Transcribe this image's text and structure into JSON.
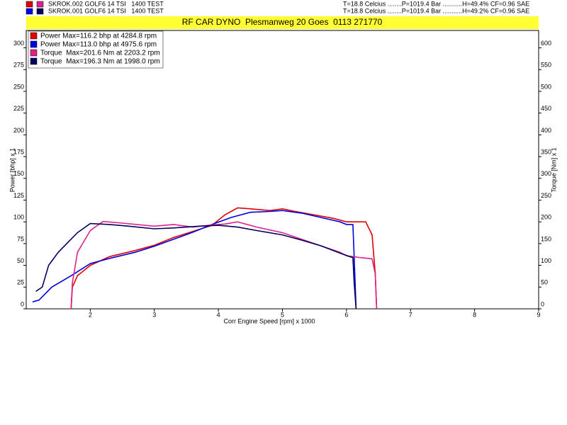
{
  "runs": [
    {
      "name": "SKROK.002 GOLF6 14 TSI   1400 TEST",
      "conditions": "T=18.8 Celcius ........P=1019.4 Bar ...........H=49.4% CF=0.96 SAE",
      "colors": [
        "#e00000",
        "#e0208a"
      ]
    },
    {
      "name": "SKROK.001 GOLF6 14 TSI   1400 TEST",
      "conditions": "T=18.8 Celcius ........P=1019.4 Bar ...........H=49.2% CF=0.96 SAE",
      "colors": [
        "#0000e0",
        "#000060"
      ]
    }
  ],
  "chart_data": {
    "type": "line",
    "title": "RF CAR DYNO  Plesmanweg 20 Goes  0113 271770",
    "title_background": "#ffff33",
    "x_label": "Corr Engine Speed [rpm] x 1000",
    "y_label": "Power [bhp] x 1",
    "y2_label": "Torque [Nm] x 1",
    "xlim": [
      1,
      9
    ],
    "xticks": [
      2,
      3,
      4,
      5,
      6,
      7,
      8,
      9
    ],
    "ylim": [
      0,
      320
    ],
    "yticks": [
      0,
      25,
      50,
      75,
      100,
      125,
      150,
      175,
      200,
      225,
      250,
      275,
      300
    ],
    "y2lim": [
      0,
      640
    ],
    "y2ticks": [
      0,
      50,
      100,
      150,
      200,
      250,
      300,
      350,
      400,
      450,
      500,
      550,
      600
    ],
    "legend": "top-left",
    "grid": false,
    "series": [
      {
        "name": "Power Max=116.2 bhp at 4284.8 rpm",
        "color": "#e00000",
        "x": [
          1.7,
          1.72,
          1.8,
          2.0,
          2.3,
          2.7,
          3.0,
          3.3,
          3.6,
          3.9,
          4.1,
          4.3,
          4.5,
          4.8,
          5.0,
          5.2,
          5.5,
          5.8,
          6.0,
          6.3,
          6.4,
          6.45,
          6.47
        ],
        "values": [
          0,
          25,
          38,
          50,
          60,
          67,
          73,
          82,
          89,
          96,
          108,
          116,
          115,
          113,
          115,
          112,
          108,
          104,
          100,
          100,
          85,
          40,
          0
        ]
      },
      {
        "name": "Power Max=113.0 bhp at 4975.6 rpm",
        "color": "#0000e0",
        "x": [
          1.1,
          1.2,
          1.4,
          1.7,
          2.0,
          2.3,
          2.7,
          3.0,
          3.3,
          3.6,
          3.9,
          4.2,
          4.5,
          4.8,
          5.0,
          5.3,
          5.6,
          5.9,
          6.0,
          6.1,
          6.12,
          6.15
        ],
        "values": [
          8,
          10,
          25,
          38,
          52,
          58,
          65,
          72,
          80,
          88,
          97,
          105,
          111,
          112,
          113,
          110,
          105,
          100,
          97,
          97,
          60,
          0
        ]
      },
      {
        "name": "Torque  Max=201.6 Nm at 2203.2 rpm",
        "color": "#e0208a",
        "axis": "y2",
        "x": [
          1.7,
          1.72,
          1.8,
          2.0,
          2.2,
          2.5,
          3.0,
          3.3,
          3.6,
          3.9,
          4.1,
          4.3,
          4.6,
          5.0,
          5.3,
          5.6,
          5.9,
          6.0,
          6.2,
          6.4,
          6.45,
          6.47
        ],
        "values": [
          0,
          60,
          130,
          180,
          201,
          197,
          190,
          194,
          188,
          193,
          195,
          200,
          188,
          175,
          160,
          145,
          130,
          122,
          118,
          115,
          80,
          0
        ]
      },
      {
        "name": "Torque  Max=196.3 Nm at 1998.0 rpm",
        "color": "#000060",
        "axis": "y2",
        "x": [
          1.15,
          1.25,
          1.35,
          1.5,
          1.8,
          2.0,
          2.3,
          2.6,
          3.0,
          3.3,
          3.7,
          4.0,
          4.3,
          4.6,
          5.0,
          5.3,
          5.6,
          5.9,
          6.05,
          6.1,
          6.12,
          6.15
        ],
        "values": [
          40,
          50,
          100,
          130,
          175,
          196,
          194,
          190,
          184,
          186,
          190,
          192,
          188,
          180,
          170,
          158,
          145,
          128,
          120,
          118,
          60,
          0
        ]
      }
    ]
  }
}
